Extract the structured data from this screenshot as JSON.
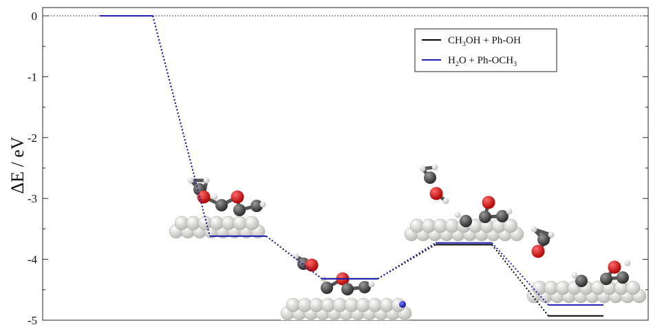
{
  "chart_data": {
    "type": "line",
    "title": "",
    "xlabel": "",
    "ylabel": "ΔE / eV",
    "ylim": [
      -5,
      0.15
    ],
    "yticks": [
      0,
      -1,
      -2,
      -3,
      -4,
      -5
    ],
    "grid": false,
    "legend_position": "top-right",
    "zero_line": true,
    "series": [
      {
        "name_parts": [
          {
            "t": "CH",
            "sub": false
          },
          {
            "t": "3",
            "sub": true
          },
          {
            "t": "OH + Ph-OH",
            "sub": false
          }
        ],
        "color": "#000000",
        "levels": [
          0,
          -3.62,
          -4.32,
          -3.76,
          -4.93
        ]
      },
      {
        "name_parts": [
          {
            "t": "H",
            "sub": false
          },
          {
            "t": "2",
            "sub": true
          },
          {
            "t": "O + Ph-OCH",
            "sub": false
          },
          {
            "t": "3",
            "sub": true
          }
        ],
        "color": "#1f1fb4",
        "levels": [
          0,
          -3.62,
          -4.32,
          -3.73,
          -4.75
        ]
      }
    ],
    "molecule_images": [
      "adsorbed-intermediate-1",
      "adsorbed-intermediate-2",
      "adsorbed-intermediate-3",
      "adsorbed-intermediate-4"
    ]
  }
}
